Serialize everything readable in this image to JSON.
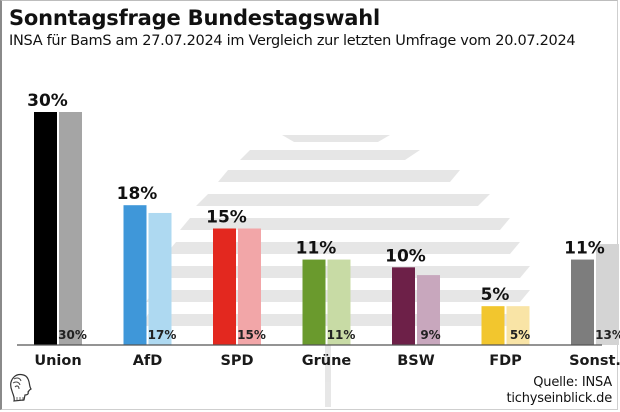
{
  "header": {
    "title": "Sonntagsfrage Bundestagswahl",
    "subtitle": "INSA für BamS am 27.07.2024 im Vergleich zur letzten Umfrage vom 20.07.2024"
  },
  "footer": {
    "source": "Quelle: INSA",
    "site": "tichyseinblick.de",
    "logo_icon": "greek-head-logo-icon"
  },
  "chart_data": {
    "type": "bar",
    "title": "Sonntagsfrage Bundestagswahl",
    "subtitle": "INSA für BamS am 27.07.2024 im Vergleich zur letzten Umfrage vom 20.07.2024",
    "xlabel": "",
    "ylabel": "",
    "ylim": [
      0,
      30
    ],
    "grid": false,
    "categories": [
      "Union",
      "AfD",
      "SPD",
      "Grüne",
      "BSW",
      "FDP",
      "Sonst."
    ],
    "series": [
      {
        "name": "27.07.2024",
        "values": [
          30,
          18,
          15,
          11,
          10,
          5,
          11
        ],
        "labels": [
          "30%",
          "18%",
          "15%",
          "11%",
          "10%",
          "5%",
          "11%"
        ],
        "colors": [
          "#000000",
          "#3f97d9",
          "#e3281f",
          "#6a9a2d",
          "#6d2048",
          "#f2c62e",
          "#7d7d7d"
        ]
      },
      {
        "name": "20.07.2024",
        "values": [
          30,
          17,
          15,
          11,
          9,
          5,
          13
        ],
        "labels": [
          "30%",
          "17%",
          "15%",
          "11%",
          "9%",
          "5%",
          "13%"
        ],
        "colors": [
          "#a5a5a5",
          "#aed9f1",
          "#f2a6a8",
          "#c8dba5",
          "#c8a7bd",
          "#f9e4a6",
          "#d4d4d4"
        ]
      }
    ]
  }
}
